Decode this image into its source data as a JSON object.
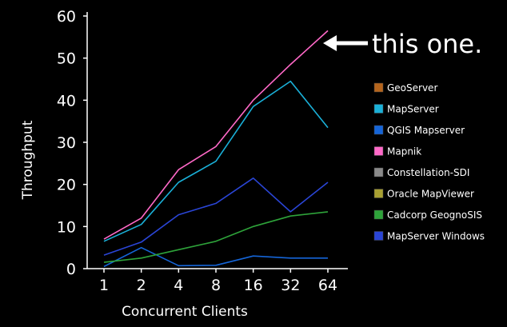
{
  "chart_data": {
    "type": "line",
    "title": "",
    "xlabel": "Concurrent Clients",
    "ylabel": "Throughput",
    "categories": [
      "1",
      "2",
      "4",
      "8",
      "16",
      "32",
      "64"
    ],
    "ylim": [
      0,
      60
    ],
    "yticks": [
      0,
      10,
      20,
      30,
      40,
      50,
      60
    ],
    "grid": false,
    "legend_position": "right",
    "series": [
      {
        "name": "GeoServer",
        "color": "#b5651d",
        "values": null
      },
      {
        "name": "MapServer",
        "color": "#1ab0d8",
        "values": [
          6.5,
          10.5,
          20.5,
          25.5,
          38.5,
          44.5,
          33.5
        ]
      },
      {
        "name": "QGIS Mapserver",
        "color": "#1565d8",
        "values": [
          0.5,
          5,
          0.7,
          0.8,
          3,
          2.5,
          2.5
        ]
      },
      {
        "name": "Mapnik",
        "color": "#ff69c8",
        "values": [
          7,
          12,
          23.5,
          29,
          40,
          48.5,
          56.5
        ]
      },
      {
        "name": "Constellation-SDI",
        "color": "#8a8a8a",
        "values": null
      },
      {
        "name": "Oracle MapViewer",
        "color": "#a8a032",
        "values": null
      },
      {
        "name": "Cadcorp GeognoSIS",
        "color": "#2ea33a",
        "values": [
          1.5,
          2.5,
          4.5,
          6.5,
          10,
          12.5,
          13.5
        ]
      },
      {
        "name": "MapServer Windows",
        "color": "#2a45d6",
        "values": [
          3.2,
          6.3,
          12.8,
          15.5,
          21.5,
          13.5,
          20.5
        ]
      }
    ],
    "annotation": {
      "text": "this one.",
      "target_series": "Mapnik"
    }
  }
}
